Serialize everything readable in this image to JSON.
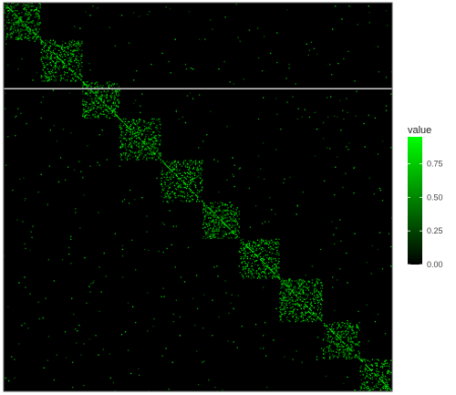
{
  "chart_data": {
    "type": "heatmap",
    "description_free": true,
    "n": 420,
    "block_starts": [
      0,
      40,
      85,
      125,
      170,
      215,
      255,
      298,
      345,
      385,
      420
    ],
    "block_densities": [
      0.35,
      0.32,
      0.34,
      0.33,
      0.3,
      0.32,
      0.31,
      0.34,
      0.3,
      0.33
    ],
    "background_density": 0.003,
    "value_range": [
      0,
      1
    ],
    "colors": {
      "low": "#000000",
      "high": "#00ff00",
      "separator": "#cccccc",
      "frame": "#555555"
    },
    "separator_row": 90,
    "legend": {
      "title": "value",
      "ticks": [
        {
          "value": 0.0,
          "label": "0.00"
        },
        {
          "value": 0.25,
          "label": "0.25"
        },
        {
          "value": 0.5,
          "label": "0.50"
        },
        {
          "value": 0.75,
          "label": "0.75"
        }
      ],
      "placement": "right"
    }
  }
}
